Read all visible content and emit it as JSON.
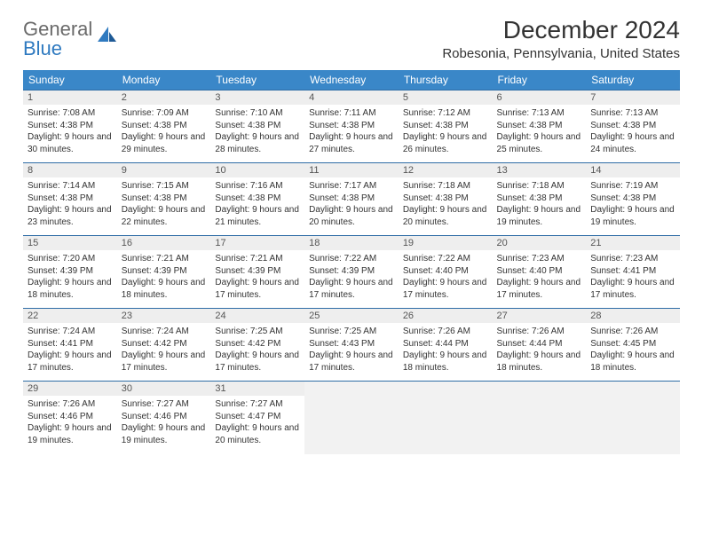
{
  "logo": {
    "text1": "General",
    "text2": "Blue"
  },
  "title": "December 2024",
  "location": "Robesonia, Pennsylvania, United States",
  "colors": {
    "header_bg": "#3a87c8",
    "header_text": "#ffffff",
    "row_accent": "#2f6da6",
    "daynum_bg": "#eeeeee",
    "body_bg": "#ffffff",
    "text": "#333333",
    "logo_gray": "#6a6a6a",
    "logo_blue": "#2f7ac0"
  },
  "weekdays": [
    "Sunday",
    "Monday",
    "Tuesday",
    "Wednesday",
    "Thursday",
    "Friday",
    "Saturday"
  ],
  "weeks": [
    [
      {
        "n": "1",
        "sr": "7:08 AM",
        "ss": "4:38 PM",
        "dl": "9 hours and 30 minutes."
      },
      {
        "n": "2",
        "sr": "7:09 AM",
        "ss": "4:38 PM",
        "dl": "9 hours and 29 minutes."
      },
      {
        "n": "3",
        "sr": "7:10 AM",
        "ss": "4:38 PM",
        "dl": "9 hours and 28 minutes."
      },
      {
        "n": "4",
        "sr": "7:11 AM",
        "ss": "4:38 PM",
        "dl": "9 hours and 27 minutes."
      },
      {
        "n": "5",
        "sr": "7:12 AM",
        "ss": "4:38 PM",
        "dl": "9 hours and 26 minutes."
      },
      {
        "n": "6",
        "sr": "7:13 AM",
        "ss": "4:38 PM",
        "dl": "9 hours and 25 minutes."
      },
      {
        "n": "7",
        "sr": "7:13 AM",
        "ss": "4:38 PM",
        "dl": "9 hours and 24 minutes."
      }
    ],
    [
      {
        "n": "8",
        "sr": "7:14 AM",
        "ss": "4:38 PM",
        "dl": "9 hours and 23 minutes."
      },
      {
        "n": "9",
        "sr": "7:15 AM",
        "ss": "4:38 PM",
        "dl": "9 hours and 22 minutes."
      },
      {
        "n": "10",
        "sr": "7:16 AM",
        "ss": "4:38 PM",
        "dl": "9 hours and 21 minutes."
      },
      {
        "n": "11",
        "sr": "7:17 AM",
        "ss": "4:38 PM",
        "dl": "9 hours and 20 minutes."
      },
      {
        "n": "12",
        "sr": "7:18 AM",
        "ss": "4:38 PM",
        "dl": "9 hours and 20 minutes."
      },
      {
        "n": "13",
        "sr": "7:18 AM",
        "ss": "4:38 PM",
        "dl": "9 hours and 19 minutes."
      },
      {
        "n": "14",
        "sr": "7:19 AM",
        "ss": "4:38 PM",
        "dl": "9 hours and 19 minutes."
      }
    ],
    [
      {
        "n": "15",
        "sr": "7:20 AM",
        "ss": "4:39 PM",
        "dl": "9 hours and 18 minutes."
      },
      {
        "n": "16",
        "sr": "7:21 AM",
        "ss": "4:39 PM",
        "dl": "9 hours and 18 minutes."
      },
      {
        "n": "17",
        "sr": "7:21 AM",
        "ss": "4:39 PM",
        "dl": "9 hours and 17 minutes."
      },
      {
        "n": "18",
        "sr": "7:22 AM",
        "ss": "4:39 PM",
        "dl": "9 hours and 17 minutes."
      },
      {
        "n": "19",
        "sr": "7:22 AM",
        "ss": "4:40 PM",
        "dl": "9 hours and 17 minutes."
      },
      {
        "n": "20",
        "sr": "7:23 AM",
        "ss": "4:40 PM",
        "dl": "9 hours and 17 minutes."
      },
      {
        "n": "21",
        "sr": "7:23 AM",
        "ss": "4:41 PM",
        "dl": "9 hours and 17 minutes."
      }
    ],
    [
      {
        "n": "22",
        "sr": "7:24 AM",
        "ss": "4:41 PM",
        "dl": "9 hours and 17 minutes."
      },
      {
        "n": "23",
        "sr": "7:24 AM",
        "ss": "4:42 PM",
        "dl": "9 hours and 17 minutes."
      },
      {
        "n": "24",
        "sr": "7:25 AM",
        "ss": "4:42 PM",
        "dl": "9 hours and 17 minutes."
      },
      {
        "n": "25",
        "sr": "7:25 AM",
        "ss": "4:43 PM",
        "dl": "9 hours and 17 minutes."
      },
      {
        "n": "26",
        "sr": "7:26 AM",
        "ss": "4:44 PM",
        "dl": "9 hours and 18 minutes."
      },
      {
        "n": "27",
        "sr": "7:26 AM",
        "ss": "4:44 PM",
        "dl": "9 hours and 18 minutes."
      },
      {
        "n": "28",
        "sr": "7:26 AM",
        "ss": "4:45 PM",
        "dl": "9 hours and 18 minutes."
      }
    ],
    [
      {
        "n": "29",
        "sr": "7:26 AM",
        "ss": "4:46 PM",
        "dl": "9 hours and 19 minutes."
      },
      {
        "n": "30",
        "sr": "7:27 AM",
        "ss": "4:46 PM",
        "dl": "9 hours and 19 minutes."
      },
      {
        "n": "31",
        "sr": "7:27 AM",
        "ss": "4:47 PM",
        "dl": "9 hours and 20 minutes."
      },
      null,
      null,
      null,
      null
    ]
  ],
  "labels": {
    "sunrise": "Sunrise: ",
    "sunset": "Sunset: ",
    "daylight": "Daylight: "
  }
}
